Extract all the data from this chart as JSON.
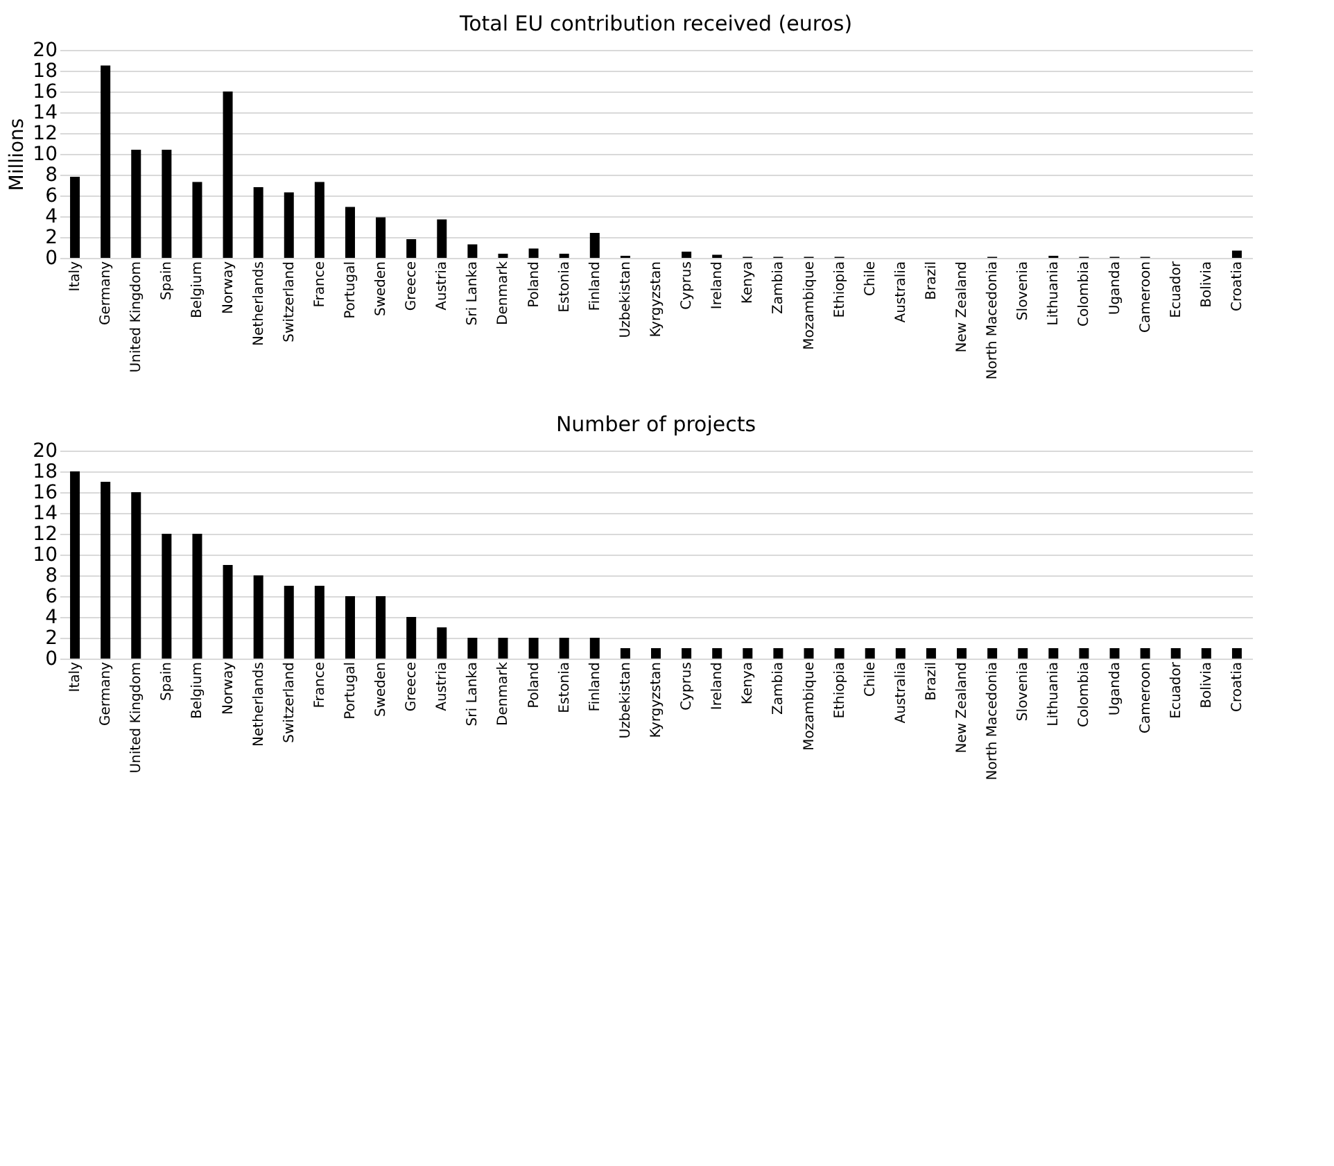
{
  "chart_data": [
    {
      "type": "bar",
      "title": "Total EU contribution received (euros)",
      "ylabel": "Millions",
      "categories": [
        "Italy",
        "Germany",
        "United Kingdom",
        "Spain",
        "Belgium",
        "Norway",
        "Netherlands",
        "Switzerland",
        "France",
        "Portugal",
        "Sweden",
        "Greece",
        "Austria",
        "Sri Lanka",
        "Denmark",
        "Poland",
        "Estonia",
        "Finland",
        "Uzbekistan",
        "Kyrgyzstan",
        "Cyprus",
        "Ireland",
        "Kenya",
        "Zambia",
        "Mozambique",
        "Ethiopia",
        "Chile",
        "Australia",
        "Brazil",
        "New Zealand",
        "North Macedonia",
        "Slovenia",
        "Lithuania",
        "Colombia",
        "Uganda",
        "Cameroon",
        "Ecuador",
        "Bolivia",
        "Croatia"
      ],
      "values": [
        7.8,
        18.5,
        10.4,
        10.4,
        7.3,
        16.0,
        6.8,
        6.3,
        7.3,
        4.9,
        3.9,
        1.8,
        3.7,
        1.3,
        0.4,
        0.9,
        0.4,
        2.4,
        0.2,
        0,
        0.6,
        0.3,
        0.1,
        0.1,
        0.1,
        0.1,
        0,
        0,
        0,
        0,
        0.1,
        0,
        0.2,
        0.1,
        0.1,
        0.1,
        0,
        0,
        0.7
      ],
      "color": "#000000",
      "ylim": [
        0,
        20
      ],
      "yticks": [
        0,
        2,
        4,
        6,
        8,
        10,
        12,
        14,
        16,
        18,
        20
      ],
      "grid": "y"
    },
    {
      "type": "bar",
      "title": "Number of projects",
      "categories": [
        "Italy",
        "Germany",
        "United Kingdom",
        "Spain",
        "Belgium",
        "Norway",
        "Netherlands",
        "Switzerland",
        "France",
        "Portugal",
        "Sweden",
        "Greece",
        "Austria",
        "Sri Lanka",
        "Denmark",
        "Poland",
        "Estonia",
        "Finland",
        "Uzbekistan",
        "Kyrgyzstan",
        "Cyprus",
        "Ireland",
        "Kenya",
        "Zambia",
        "Mozambique",
        "Ethiopia",
        "Chile",
        "Australia",
        "Brazil",
        "New Zealand",
        "North Macedonia",
        "Slovenia",
        "Lithuania",
        "Colombia",
        "Uganda",
        "Cameroon",
        "Ecuador",
        "Bolivia",
        "Croatia"
      ],
      "values": [
        18,
        17,
        16,
        12,
        12,
        9,
        8,
        7,
        7,
        6,
        6,
        4,
        3,
        2,
        2,
        2,
        2,
        2,
        1,
        1,
        1,
        1,
        1,
        1,
        1,
        1,
        1,
        1,
        1,
        1,
        1,
        1,
        1,
        1,
        1,
        1,
        1,
        1,
        1
      ],
      "color": "#000000",
      "ylim": [
        0,
        20
      ],
      "yticks": [
        0,
        2,
        4,
        6,
        8,
        10,
        12,
        14,
        16,
        18,
        20
      ],
      "grid": "y"
    }
  ]
}
